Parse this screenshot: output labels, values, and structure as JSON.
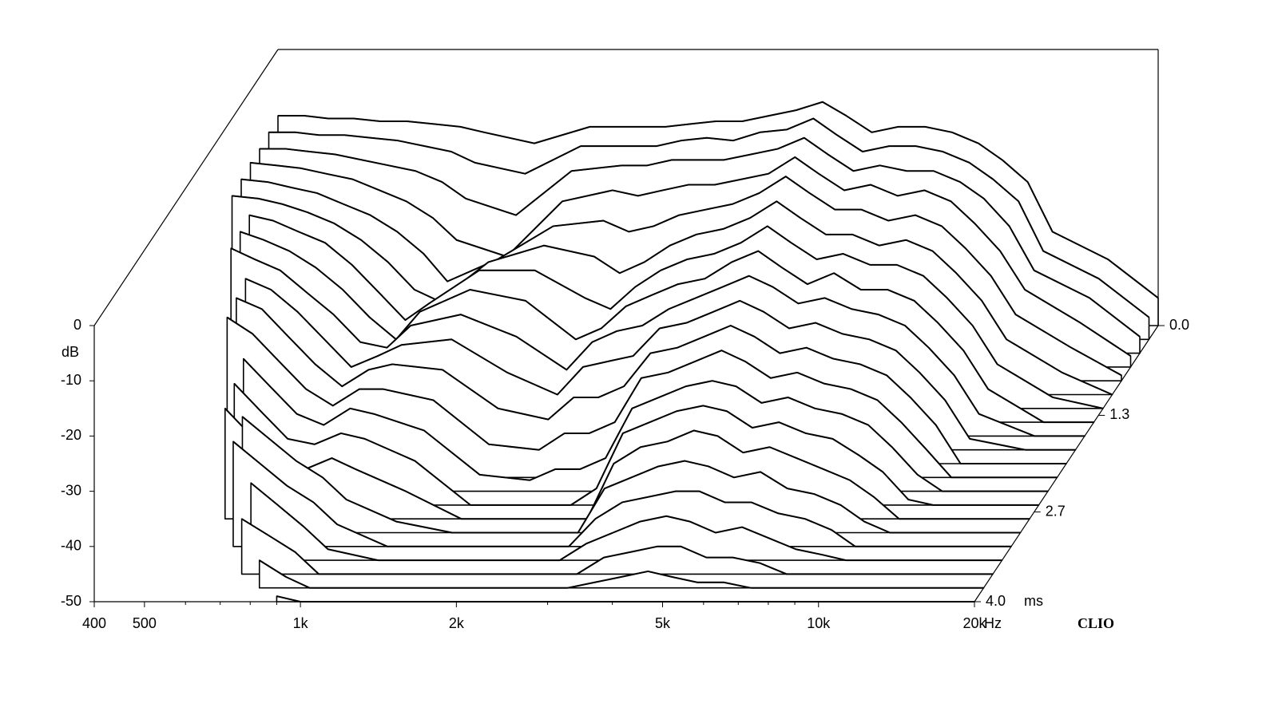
{
  "chart_data": {
    "type": "waterfall",
    "log_x": true,
    "x_unit": "Hz",
    "y_label": "dB",
    "z_unit": "ms",
    "brand": "CLIO",
    "line_color": "#000000",
    "fill_color": "#ffffff",
    "xlim": [
      400,
      20000
    ],
    "xticks": [
      400,
      500,
      {
        "value": 1000,
        "label": "1k"
      },
      {
        "value": 2000,
        "label": "2k"
      },
      {
        "value": 5000,
        "label": "5k"
      },
      {
        "value": 10000,
        "label": "10k"
      },
      {
        "value": 20000,
        "label": "20k"
      }
    ],
    "xminorticks": [
      600,
      700,
      800,
      900,
      3000,
      4000,
      6000,
      7000,
      8000,
      9000
    ],
    "ylim": [
      -50,
      0
    ],
    "yticks": [
      0,
      -10,
      -20,
      -30,
      -40,
      -50
    ],
    "zlim": [
      0,
      4
    ],
    "zticks": [
      {
        "value": 0,
        "label": "0.0"
      },
      1.3,
      2.7,
      {
        "value": 4,
        "label": "4.0"
      }
    ],
    "x": [
      400,
      450,
      500,
      560,
      630,
      710,
      800,
      900,
      1000,
      1250,
      1600,
      2000,
      2240,
      2500,
      2800,
      3150,
      3550,
      4000,
      4500,
      5000,
      5600,
      6300,
      7100,
      8000,
      9000,
      10000,
      11200,
      12500,
      16000,
      20000
    ],
    "z": [
      0,
      0.2,
      0.4,
      0.6,
      0.8,
      1.0,
      1.2,
      1.4,
      1.6,
      1.8,
      2.0,
      2.2,
      2.4,
      2.6,
      2.8,
      3.0,
      3.2,
      3.4,
      3.6,
      3.8,
      4.0
    ],
    "series": [
      {
        "values": [
          -12,
          -12,
          -12.5,
          -12.5,
          -13,
          -13,
          -13.5,
          -14,
          -15,
          -17,
          -14,
          -14,
          -14,
          -13.5,
          -13,
          -13,
          -12,
          -11,
          -9.5,
          -12,
          -15,
          -14,
          -14,
          -15,
          -17,
          -20,
          -24,
          -33,
          -38,
          -45
        ]
      },
      {
        "values": [
          -12.5,
          -12.5,
          -13,
          -13,
          -13.5,
          -14,
          -15,
          -16,
          -18,
          -20,
          -15,
          -15,
          -15,
          -14,
          -13.5,
          -14,
          -12.5,
          -12,
          -10,
          -13,
          -16,
          -15,
          -15,
          -16,
          -18,
          -21,
          -25,
          -34,
          -39,
          -46
        ]
      },
      {
        "values": [
          -13,
          -13,
          -13.5,
          -14,
          -15,
          -16,
          -17,
          -19,
          -22,
          -25,
          -17,
          -16,
          -16,
          -15,
          -15,
          -15,
          -14,
          -13,
          -11,
          -14,
          -17,
          -16,
          -17,
          -17,
          -19,
          -22,
          -27,
          -35,
          -40,
          -47
        ]
      },
      {
        "values": [
          -13,
          -13.5,
          -14,
          -15,
          -16,
          -18,
          -20,
          -23,
          -27,
          -30,
          -20,
          -18,
          -19,
          -18,
          -17,
          -17,
          -16,
          -15,
          -12,
          -15,
          -18,
          -17,
          -19,
          -18,
          -20,
          -24,
          -29,
          -36,
          -42,
          -48
        ]
      },
      {
        "values": [
          -13.5,
          -14,
          -15,
          -16,
          -18,
          -20,
          -23,
          -27,
          -32,
          -28,
          -22,
          -21,
          -23,
          -22,
          -20,
          -19,
          -18,
          -16,
          -13,
          -16,
          -19,
          -19,
          -21,
          -20,
          -22,
          -26,
          -31,
          -38,
          -44,
          -49
        ]
      },
      {
        "values": [
          -14,
          -14.5,
          -15.5,
          -17,
          -19,
          -22,
          -26,
          -31,
          -33,
          -26,
          -23,
          -25,
          -28,
          -26,
          -23,
          -21,
          -20,
          -18,
          -15,
          -18,
          -21,
          -21,
          -23,
          -22,
          -24,
          -28,
          -33,
          -40,
          -46,
          -50
        ]
      },
      {
        "values": [
          null,
          -15,
          -16,
          -18,
          -20,
          -24,
          -29,
          -34,
          -31,
          -25,
          -25,
          -30,
          -32,
          -28,
          -25,
          -23,
          -22,
          -20,
          -17,
          -20,
          -23,
          -22,
          -24,
          -24,
          -26,
          -30,
          -35,
          -42,
          -48,
          -50
        ]
      },
      {
        "values": [
          null,
          -15.5,
          -17,
          -19,
          -22,
          -26,
          -31,
          -35,
          -30,
          -26,
          -28,
          -35,
          -33,
          -29,
          -27,
          -25,
          -24,
          -21,
          -19,
          -22,
          -25,
          -23,
          -26,
          -26,
          -28,
          -32,
          -37,
          -44,
          -50,
          -50
        ]
      },
      {
        "values": [
          null,
          -16,
          -18,
          -20,
          -24,
          -28,
          -33,
          -34,
          -30,
          -28,
          -32,
          -38,
          -33,
          -31,
          -30,
          -27,
          -25,
          -23,
          -21,
          -23,
          -26,
          -25,
          -27,
          -28,
          -30,
          -34,
          -39,
          -46,
          -50,
          -50
        ]
      },
      {
        "values": [
          null,
          null,
          -19,
          -21,
          -25,
          -30,
          -35,
          -33,
          -31,
          -30,
          -36,
          -40,
          -35,
          -34,
          -33,
          -28,
          -27,
          -25,
          -23,
          -25,
          -28,
          -27,
          -29,
          -30,
          -32,
          -36,
          -41,
          -48,
          -50,
          -50
        ]
      },
      {
        "values": [
          null,
          null,
          -20,
          -22,
          -27,
          -32,
          -36,
          -33,
          -32,
          -33,
          -40,
          -42,
          -38,
          -38,
          -36,
          -30,
          -29,
          -27,
          -25,
          -27,
          -30,
          -29,
          -31,
          -32,
          -34,
          -38,
          -43,
          -50,
          -50,
          -50
        ]
      },
      {
        "values": [
          null,
          null,
          -21,
          -24,
          -29,
          -34,
          -37,
          -34,
          -34,
          -36,
          -44,
          -45,
          -42,
          -42,
          -40,
          -32,
          -31,
          -29,
          -27,
          -29,
          -32,
          -31,
          -33,
          -34,
          -36,
          -40,
          -45,
          -50,
          -50,
          -50
        ]
      },
      {
        "values": [
          null,
          null,
          null,
          -26,
          -31,
          -36,
          -38,
          -35,
          -36,
          -39,
          -47,
          -48,
          -46,
          -46,
          -44,
          -35,
          -33,
          -31,
          -30,
          -31,
          -34,
          -33,
          -35,
          -36,
          -38,
          -42,
          -47,
          -50,
          -50,
          -50
        ]
      },
      {
        "values": [
          null,
          null,
          null,
          -28,
          -33,
          -38,
          -39,
          -37,
          -38,
          -42,
          -50,
          -50,
          -50,
          -50,
          -47,
          -37,
          -35,
          -33,
          -32,
          -33,
          -36,
          -35,
          -37,
          -38,
          -41,
          -44,
          -49,
          -50,
          -50,
          -50
        ]
      },
      {
        "values": [
          null,
          null,
          null,
          -30,
          -35,
          -40,
          -41,
          -39,
          -41,
          -45,
          -50,
          -50,
          -50,
          -50,
          -50,
          -40,
          -37,
          -36,
          -34,
          -35,
          -38,
          -37,
          -39,
          -41,
          -43,
          -46,
          -50,
          -50,
          -50,
          -50
        ]
      },
      {
        "values": [
          null,
          null,
          null,
          null,
          -29,
          -33,
          -37,
          -40,
          -44,
          -48,
          -50,
          -50,
          -50,
          -50,
          -50,
          -42,
          -40,
          -38,
          -37,
          -38,
          -40,
          -39,
          -42,
          -43,
          -45,
          -48,
          -50,
          -50,
          -50,
          -50
        ]
      },
      {
        "values": [
          null,
          null,
          null,
          null,
          -31,
          -35,
          -39,
          -42,
          -46,
          -50,
          -50,
          -50,
          -50,
          -50,
          -50,
          -45,
          -42,
          -41,
          -40,
          -40,
          -42,
          -42,
          -44,
          -45,
          -47,
          -50,
          -50,
          -50,
          -50,
          -50
        ]
      },
      {
        "values": [
          null,
          null,
          null,
          null,
          null,
          -36,
          -40,
          -44,
          -48,
          -50,
          -50,
          -50,
          -50,
          -50,
          -50,
          -47,
          -45,
          -43,
          -42,
          -43,
          -45,
          -44,
          -46,
          -48,
          -49,
          -50,
          -50,
          -50,
          -50,
          -50
        ]
      },
      {
        "values": [
          null,
          null,
          null,
          null,
          null,
          -40,
          -43,
          -46,
          -50,
          -50,
          -50,
          -50,
          -50,
          -50,
          -50,
          -50,
          -47,
          -46,
          -45,
          -45,
          -47,
          -47,
          -48,
          -50,
          -50,
          -50,
          -50,
          -50,
          -50,
          -50
        ]
      },
      {
        "values": [
          null,
          null,
          null,
          null,
          null,
          null,
          -45,
          -48,
          -50,
          -50,
          -50,
          -50,
          -50,
          -50,
          -50,
          -50,
          -49,
          -48,
          -47,
          -48,
          -49,
          -49,
          -50,
          -50,
          -50,
          -50,
          -50,
          -50,
          -50,
          -50
        ]
      },
      {
        "values": [
          null,
          null,
          null,
          null,
          null,
          null,
          null,
          -49,
          -50,
          -50,
          -50,
          -50,
          -50,
          -50,
          -50,
          -50,
          -50,
          -50,
          -50,
          -50,
          -50,
          -50,
          -50,
          -50,
          -50,
          -50,
          -50,
          -50,
          -50,
          -50
        ]
      }
    ]
  }
}
